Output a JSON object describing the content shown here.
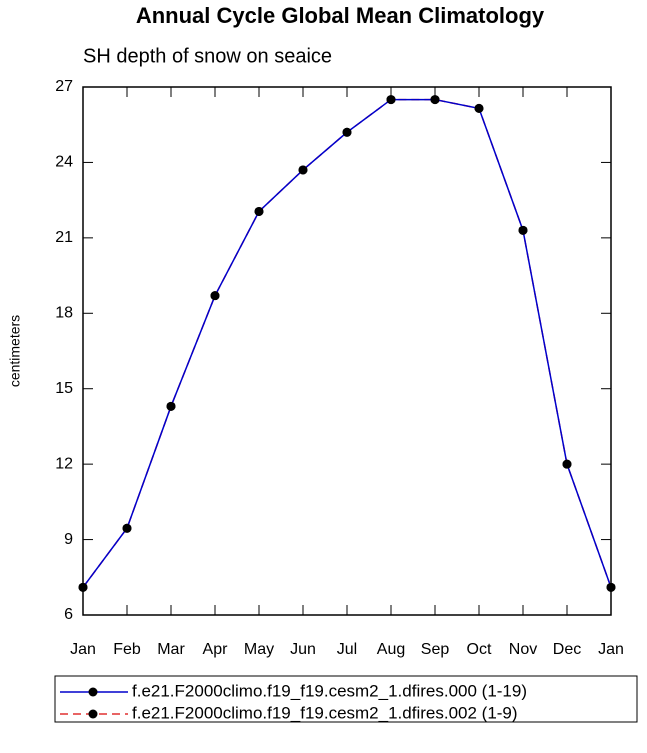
{
  "chart_data": {
    "type": "line",
    "title": "Annual Cycle Global Mean Climatology",
    "subtitle": "SH depth of snow on seaice",
    "ylabel": "centimeters",
    "categories": [
      "Jan",
      "Feb",
      "Mar",
      "Apr",
      "May",
      "Jun",
      "Jul",
      "Aug",
      "Sep",
      "Oct",
      "Nov",
      "Dec",
      "Jan"
    ],
    "series": [
      {
        "name": "f.e21.F2000climo.f19_f19.cesm2_1.dfires.002 (1-9)",
        "color": "#e03030",
        "dash": true,
        "values": [
          7.1,
          9.45,
          14.3,
          18.7,
          22.05,
          23.7,
          25.2,
          26.5,
          26.5,
          26.15,
          21.3,
          12.0,
          7.1
        ]
      },
      {
        "name": "f.e21.F2000climo.f19_f19.cesm2_1.dfires.000 (1-19)",
        "color": "#0000cc",
        "dash": false,
        "values": [
          7.1,
          9.45,
          14.3,
          18.7,
          22.05,
          23.7,
          25.2,
          26.5,
          26.5,
          26.15,
          21.3,
          12.0,
          7.1
        ]
      }
    ],
    "ylim": [
      6,
      27
    ],
    "yticks": [
      6,
      9,
      12,
      15,
      18,
      21,
      24,
      27
    ],
    "grid": false
  }
}
